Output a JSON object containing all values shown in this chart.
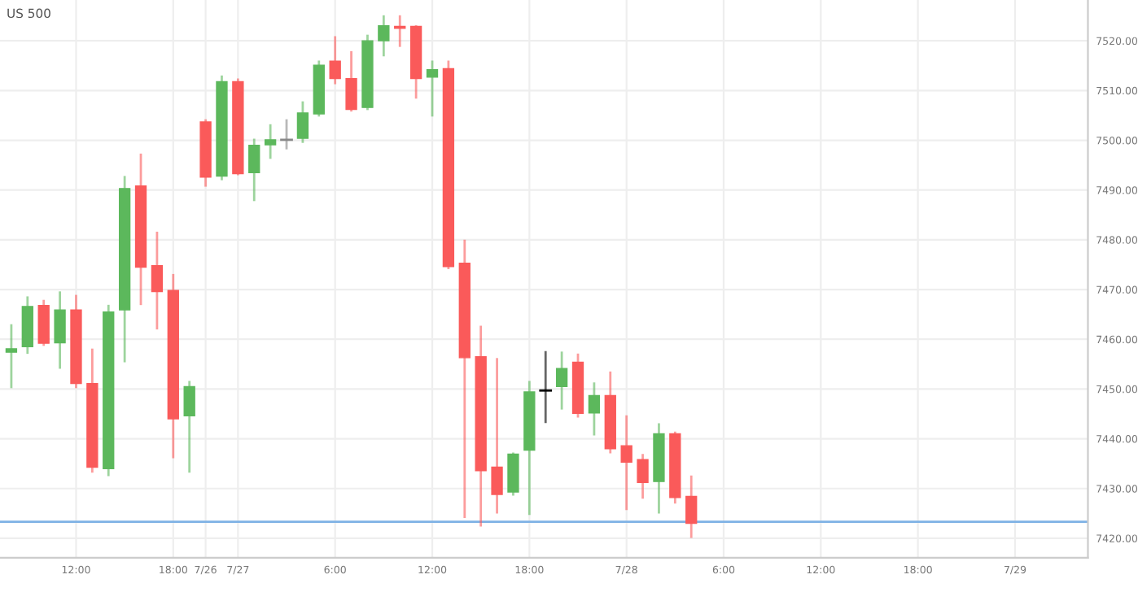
{
  "chart_data": {
    "type": "candlestick",
    "title": "US 500",
    "categories": [
      null,
      null,
      null,
      null,
      "12:00",
      null,
      null,
      null,
      null,
      null,
      "18:00",
      null,
      "7/26",
      null,
      "7/27",
      null,
      null,
      null,
      null,
      null,
      "6:00",
      null,
      null,
      null,
      null,
      null,
      "12:00",
      null,
      null,
      null,
      null,
      null,
      "18:00",
      null,
      null,
      null,
      null,
      null,
      "7/28",
      null,
      null,
      null,
      null,
      null,
      "6:00",
      null,
      null,
      null,
      null,
      null,
      "12:00",
      null,
      null,
      null,
      null,
      null,
      "18:00",
      null,
      null,
      null,
      null,
      null,
      "7/29",
      null,
      null,
      null,
      null
    ],
    "ohlc": [
      [
        7457.4,
        7462.8,
        7450.4,
        7458.1
      ],
      [
        7458.5,
        7468.4,
        7457.3,
        7466.6
      ],
      [
        7466.8,
        7467.7,
        7458.9,
        7459.2
      ],
      [
        7459.3,
        7469.4,
        7454.3,
        7465.9
      ],
      [
        7465.9,
        7468.7,
        7450.4,
        7451.1
      ],
      [
        7451.1,
        7457.9,
        7433.4,
        7434.3
      ],
      [
        7434.0,
        7466.7,
        7432.7,
        7465.5
      ],
      [
        7465.9,
        7492.6,
        7455.6,
        7490.3
      ],
      [
        7490.8,
        7497.1,
        7467.1,
        7474.5
      ],
      [
        7474.8,
        7481.4,
        7462.2,
        7469.6
      ],
      [
        7469.8,
        7472.9,
        7436.3,
        7444.0
      ],
      [
        7444.6,
        7451.4,
        7433.4,
        7450.5
      ],
      [
        7503.7,
        7504.0,
        7490.9,
        7492.6
      ],
      [
        7492.8,
        7512.8,
        7492.2,
        7511.8
      ],
      [
        7511.8,
        7512.2,
        7493.2,
        7493.3
      ],
      [
        7493.5,
        7500.1,
        7488.0,
        7499.0
      ],
      [
        7499.1,
        7503.0,
        7496.5,
        7500.1
      ],
      [
        7500.1,
        7504.0,
        7498.4,
        7500.1
      ],
      [
        7500.4,
        7507.6,
        7499.7,
        7505.5
      ],
      [
        7505.3,
        7515.8,
        7505.0,
        7515.1
      ],
      [
        7515.9,
        7520.7,
        7511.5,
        7512.4
      ],
      [
        7512.4,
        7517.7,
        7506.0,
        7506.2
      ],
      [
        7506.6,
        7521.0,
        7506.3,
        7520.0
      ],
      [
        7520.0,
        7524.9,
        7517.1,
        7523.0
      ],
      [
        7522.9,
        7524.9,
        7519.0,
        7522.5
      ],
      [
        7522.9,
        7522.9,
        7508.6,
        7512.4
      ],
      [
        7512.7,
        7515.8,
        7505.0,
        7514.2
      ],
      [
        7514.4,
        7515.8,
        7474.3,
        7474.6
      ],
      [
        7475.3,
        7479.8,
        7424.3,
        7456.3
      ],
      [
        7456.5,
        7462.5,
        7422.6,
        7433.6
      ],
      [
        7434.3,
        7456.0,
        7425.2,
        7428.8
      ],
      [
        7429.3,
        7437.0,
        7428.8,
        7436.9
      ],
      [
        7437.7,
        7451.4,
        7424.9,
        7449.4
      ],
      [
        7449.7,
        7457.4,
        7443.4,
        7449.7
      ],
      [
        7450.5,
        7457.3,
        7446.1,
        7454.1
      ],
      [
        7455.4,
        7456.9,
        7444.5,
        7445.1
      ],
      [
        7445.2,
        7451.1,
        7440.9,
        7448.7
      ],
      [
        7448.7,
        7453.3,
        7437.3,
        7438.0
      ],
      [
        7438.6,
        7444.5,
        7425.9,
        7435.3
      ],
      [
        7435.8,
        7436.7,
        7428.2,
        7431.2
      ],
      [
        7431.4,
        7442.9,
        7425.2,
        7441.0
      ],
      [
        7441.0,
        7441.2,
        7427.2,
        7428.2
      ],
      [
        7428.4,
        7432.4,
        7420.3,
        7423.0
      ],
      null,
      null,
      null,
      null,
      null,
      null,
      null,
      null,
      null,
      null,
      null,
      null,
      null,
      null,
      null,
      null,
      null,
      null,
      null,
      null,
      null,
      null,
      null,
      null
    ],
    "colors": [
      "#5cb85c",
      "#5cb85c",
      "#fa5a5a",
      "#5cb85c",
      "#fa5a5a",
      "#fa5a5a",
      "#5cb85c",
      "#5cb85c",
      "#fa5a5a",
      "#fa5a5a",
      "#fa5a5a",
      "#5cb85c",
      "#fa5a5a",
      "#5cb85c",
      "#fa5a5a",
      "#5cb85c",
      "#5cb85c",
      "#888888",
      "#5cb85c",
      "#5cb85c",
      "#fa5a5a",
      "#fa5a5a",
      "#5cb85c",
      "#5cb85c",
      "#fa5a5a",
      "#fa5a5a",
      "#5cb85c",
      "#fa5a5a",
      "#fa5a5a",
      "#fa5a5a",
      "#fa5a5a",
      "#5cb85c",
      "#5cb85c",
      "#000000",
      "#5cb85c",
      "#fa5a5a",
      "#5cb85c",
      "#fa5a5a",
      "#fa5a5a",
      "#fa5a5a",
      "#5cb85c",
      "#fa5a5a",
      "#fa5a5a",
      null,
      null,
      null,
      null,
      null,
      null,
      null,
      null,
      null,
      null,
      null,
      null,
      null,
      null,
      null,
      null,
      null,
      null,
      null,
      null,
      null,
      null,
      null,
      null
    ],
    "ylim": [
      7416.1,
      7528.2
    ],
    "yticks": [
      {
        "value": 7420,
        "label": "7420.00"
      },
      {
        "value": 7430,
        "label": "7430.00"
      },
      {
        "value": 7440,
        "label": "7440.00"
      },
      {
        "value": 7450,
        "label": "7450.00"
      },
      {
        "value": 7460,
        "label": "7460.00"
      },
      {
        "value": 7470,
        "label": "7470.00"
      },
      {
        "value": 7480,
        "label": "7480.00"
      },
      {
        "value": 7490,
        "label": "7490.00"
      },
      {
        "value": 7500,
        "label": "7500.00"
      },
      {
        "value": 7510,
        "label": "7510.00"
      },
      {
        "value": 7520,
        "label": "7520.00"
      }
    ],
    "ref_lines": [
      {
        "axis": "y",
        "value": 7423.3,
        "color": "#7fb2e5"
      }
    ],
    "grid": true
  }
}
